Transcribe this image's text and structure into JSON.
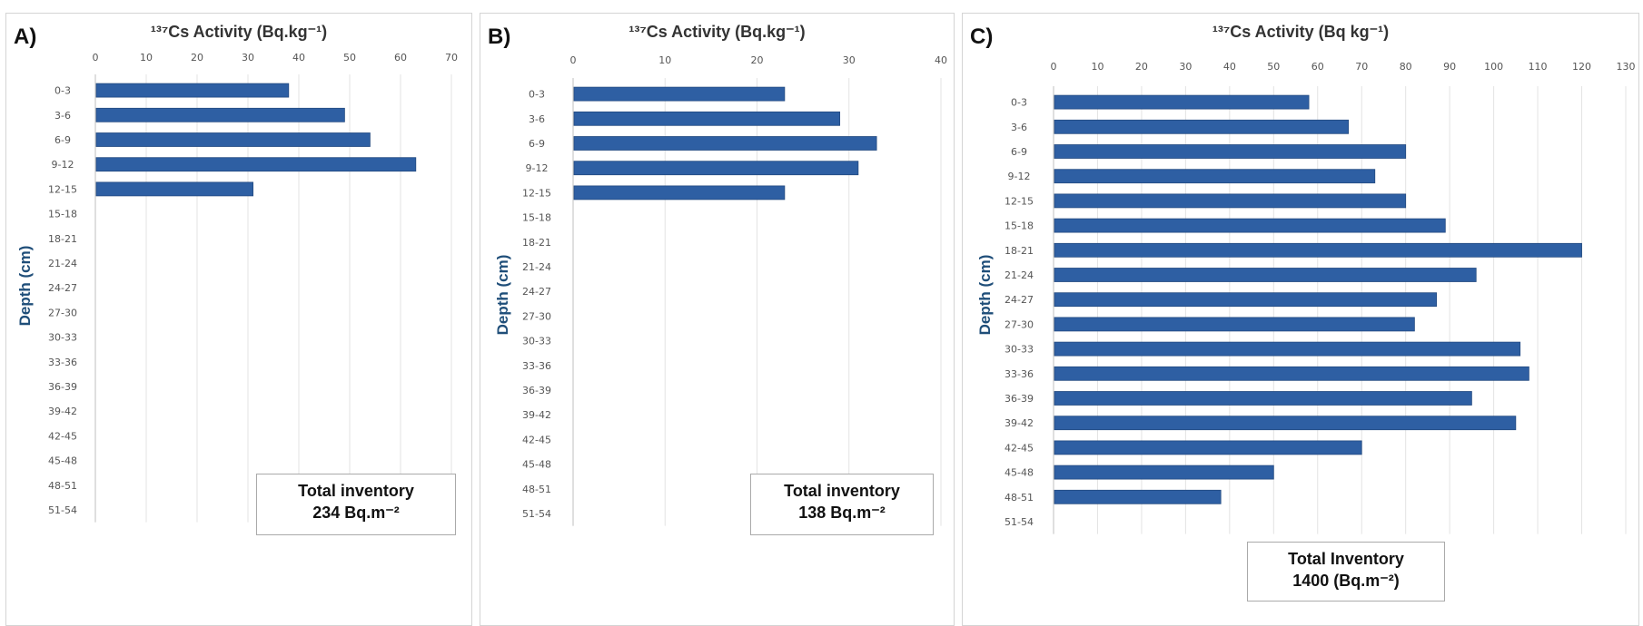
{
  "panels": [
    {
      "label": "A)",
      "title": "¹³⁷Cs Activity (Bq.kg⁻¹)",
      "ylabel": "Depth (cm)",
      "inventory_line1": "Total inventory",
      "inventory_line2": "234 Bq.m⁻²",
      "color": "#2e5fa3"
    },
    {
      "label": "B)",
      "title": "¹³⁷Cs  Activity (Bq.kg⁻¹)",
      "ylabel": "Depth (cm)",
      "inventory_line1": "Total inventory",
      "inventory_line2": "138 Bq.m⁻²",
      "color": "#2e5fa3"
    },
    {
      "label": "C)",
      "title": "¹³⁷Cs Activity (Bq kg⁻¹)",
      "ylabel": "Depth (cm)",
      "inventory_line1": "Total Inventory",
      "inventory_line2": "1400 (Bq.m⁻²)",
      "color": "#2e5fa3"
    }
  ],
  "chart_data": [
    {
      "type": "bar",
      "orientation": "horizontal",
      "title": "¹³⁷Cs Activity (Bq.kg⁻¹)",
      "ylabel": "Depth (cm)",
      "categories": [
        "0-3",
        "3-6",
        "6-9",
        "9-12",
        "12-15",
        "15-18",
        "18-21",
        "21-24",
        "24-27",
        "27-30",
        "30-33",
        "33-36",
        "36-39",
        "39-42",
        "42-45",
        "45-48",
        "48-51",
        "51-54"
      ],
      "values": [
        38,
        49,
        54,
        63,
        31,
        null,
        null,
        null,
        null,
        null,
        null,
        null,
        null,
        null,
        null,
        null,
        null,
        null
      ],
      "xlim": [
        0,
        70
      ],
      "xticks": [
        0,
        10,
        20,
        30,
        40,
        50,
        60,
        70
      ],
      "grid": true
    },
    {
      "type": "bar",
      "orientation": "horizontal",
      "title": "¹³⁷Cs  Activity (Bq.kg⁻¹)",
      "ylabel": "Depth (cm)",
      "categories": [
        "0-3",
        "3-6",
        "6-9",
        "9-12",
        "12-15",
        "15-18",
        "18-21",
        "21-24",
        "24-27",
        "27-30",
        "30-33",
        "33-36",
        "36-39",
        "39-42",
        "42-45",
        "45-48",
        "48-51",
        "51-54"
      ],
      "values": [
        23,
        29,
        33,
        31,
        23,
        null,
        null,
        null,
        null,
        null,
        null,
        null,
        null,
        null,
        null,
        null,
        null,
        null
      ],
      "xlim": [
        0,
        40
      ],
      "xticks": [
        0,
        10,
        20,
        30,
        40
      ],
      "grid": true
    },
    {
      "type": "bar",
      "orientation": "horizontal",
      "title": "¹³⁷Cs Activity (Bq kg⁻¹)",
      "ylabel": "Depth (cm)",
      "categories": [
        "0-3",
        "3-6",
        "6-9",
        "9-12",
        "12-15",
        "15-18",
        "18-21",
        "21-24",
        "24-27",
        "27-30",
        "30-33",
        "33-36",
        "36-39",
        "39-42",
        "42-45",
        "45-48",
        "48-51",
        "51-54"
      ],
      "values": [
        58,
        67,
        80,
        73,
        80,
        89,
        120,
        96,
        87,
        82,
        106,
        108,
        95,
        105,
        70,
        50,
        38,
        null
      ],
      "xlim": [
        0,
        130
      ],
      "xticks": [
        0,
        10,
        20,
        30,
        40,
        50,
        60,
        70,
        80,
        90,
        100,
        110,
        120,
        130
      ],
      "grid": true
    }
  ]
}
